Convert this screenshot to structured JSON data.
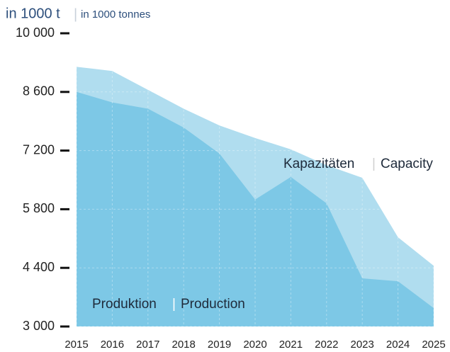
{
  "chart_data": {
    "type": "area",
    "title": "in 1000 t",
    "subtitle": "in 1000 tonnes",
    "x": [
      2015,
      2016,
      2017,
      2018,
      2019,
      2020,
      2021,
      2022,
      2023,
      2024,
      2025
    ],
    "xlim": [
      2015,
      2025
    ],
    "series": [
      {
        "name": "Kapazitäten",
        "name_en": "Capacity",
        "color": "#b0ddef",
        "values": [
          9200,
          9100,
          8650,
          8200,
          7800,
          7500,
          7230,
          6850,
          6550,
          5130,
          4450
        ]
      },
      {
        "name": "Produktion",
        "name_en": "Production",
        "color": "#7dc8e6",
        "values": [
          8600,
          8350,
          8200,
          7750,
          7130,
          6030,
          6570,
          5940,
          4150,
          4080,
          3440
        ]
      }
    ],
    "ylim": [
      3000,
      10000
    ],
    "yticks": [
      {
        "value": 3000,
        "label": "3 000"
      },
      {
        "value": 4400,
        "label": "4 400"
      },
      {
        "value": 5800,
        "label": "5 800"
      },
      {
        "value": 7200,
        "label": "7 200"
      },
      {
        "value": 8600,
        "label": "8 600"
      },
      {
        "value": 10000,
        "label": "10 000"
      }
    ],
    "grid": true
  }
}
